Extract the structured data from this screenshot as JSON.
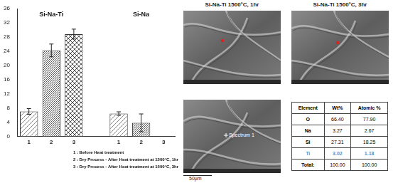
{
  "chart_data": {
    "type": "bar",
    "categories": [
      "1",
      "2",
      "3",
      "1",
      "2",
      "3"
    ],
    "groups": [
      "Si-Na-Ti",
      "Si-Na"
    ],
    "values": [
      7.0,
      24.2,
      28.8,
      6.4,
      3.8,
      null
    ],
    "errors": [
      0.8,
      1.8,
      1.4,
      0.5,
      2.5,
      null
    ],
    "color": "#555555",
    "ylim": [
      0,
      36
    ],
    "yticks": [
      0,
      4,
      8,
      12,
      16,
      20,
      24,
      28,
      32,
      36
    ],
    "grid": false,
    "notes": [
      "1 : Before Heat treatment",
      "2 : Dry Process - After Heat treatment at 1500°C, 1hr",
      "3 : Dry Process - After Heat treatment at 1500°C, 3hr"
    ]
  },
  "images": [
    {
      "title": "Si-Na-Ti 1500°C, 1hr"
    },
    {
      "title": "Si-Na-Ti  1500°C, 3hr"
    },
    {
      "label": "Spectrum 1",
      "scale_bar": "50μm"
    }
  ],
  "table": {
    "header": [
      "Element",
      "Wt%",
      "Atomic %"
    ],
    "rows": [
      {
        "cells": [
          "O",
          "66.40",
          "77.90"
        ]
      },
      {
        "cells": [
          "Na",
          "3.27",
          "2.67"
        ]
      },
      {
        "cells": [
          "Si",
          "27.31",
          "18.25"
        ]
      },
      {
        "cells": [
          "Ti",
          "3.02",
          "1.18"
        ],
        "color": "#3b9bd6"
      },
      {
        "cells": [
          "Total:",
          "100.00",
          "100.00"
        ]
      }
    ]
  }
}
